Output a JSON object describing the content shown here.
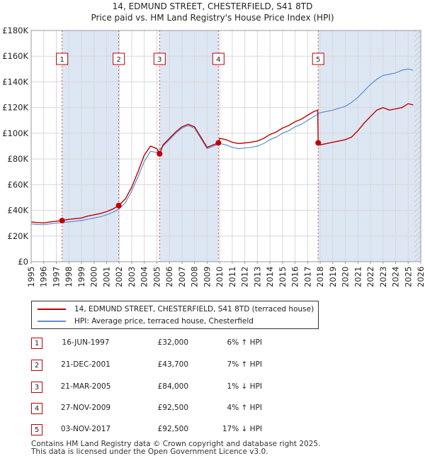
{
  "title_line1": "14, EDMUND STREET, CHESTERFIELD, S41 8TD",
  "title_line2": "Price paid vs. HM Land Registry's House Price Index (HPI)",
  "colors": {
    "property": "#c00000",
    "hpi": "#5b8fcf",
    "shade": "#dde6f3",
    "hatch": "#b0b0b0",
    "badge_border": "#c00000"
  },
  "legend": {
    "property_label": "14, EDMUND STREET, CHESTERFIELD, S41 8TD (terraced house)",
    "hpi_label": "HPI: Average price, terraced house, Chesterfield"
  },
  "sales": [
    {
      "num": "1",
      "date": "16-JUN-1997",
      "price": "£32,000",
      "hpi": "6% ↑ HPI"
    },
    {
      "num": "2",
      "date": "21-DEC-2001",
      "price": "£43,700",
      "hpi": "7% ↑ HPI"
    },
    {
      "num": "3",
      "date": "21-MAR-2005",
      "price": "£84,000",
      "hpi": "1% ↓ HPI"
    },
    {
      "num": "4",
      "date": "27-NOV-2009",
      "price": "£92,500",
      "hpi": "4% ↑ HPI"
    },
    {
      "num": "5",
      "date": "03-NOV-2017",
      "price": "£92,500",
      "hpi": "17% ↓ HPI"
    }
  ],
  "footer": {
    "line1": "Contains HM Land Registry data © Crown copyright and database right 2025.",
    "line2": "This data is licensed under the Open Government Licence v3.0."
  },
  "chart_data": {
    "type": "line",
    "title": "14, EDMUND STREET, CHESTERFIELD, S41 8TD",
    "subtitle": "Price paid vs. HM Land Registry's House Price Index (HPI)",
    "xlabel": "",
    "ylabel": "",
    "xlim": [
      1995,
      2026
    ],
    "ylim": [
      0,
      180000
    ],
    "x_ticks": [
      1995,
      1996,
      1997,
      1998,
      1999,
      2000,
      2001,
      2002,
      2003,
      2004,
      2005,
      2006,
      2007,
      2008,
      2009,
      2010,
      2011,
      2012,
      2013,
      2014,
      2015,
      2016,
      2017,
      2018,
      2019,
      2020,
      2021,
      2022,
      2023,
      2024,
      2025,
      2026
    ],
    "y_ticks": [
      0,
      20000,
      40000,
      60000,
      80000,
      100000,
      120000,
      140000,
      160000,
      180000
    ],
    "y_tick_labels": [
      "£0",
      "£20K",
      "£40K",
      "£60K",
      "£80K",
      "£100K",
      "£120K",
      "£140K",
      "£160K",
      "£180K"
    ],
    "grid": true,
    "legend_position": "below",
    "shaded_ranges": [
      [
        1997.46,
        2001.97
      ],
      [
        2005.22,
        2009.9
      ],
      [
        2017.84,
        2026
      ]
    ],
    "hatched_range": [
      2025.5,
      2026
    ],
    "sale_points": [
      {
        "label": "1",
        "x": 1997.46,
        "y": 32000
      },
      {
        "label": "2",
        "x": 2001.97,
        "y": 43700
      },
      {
        "label": "3",
        "x": 2005.22,
        "y": 84000
      },
      {
        "label": "4",
        "x": 2009.9,
        "y": 92500
      },
      {
        "label": "5",
        "x": 2017.84,
        "y": 92500
      }
    ],
    "series": [
      {
        "name": "HPI: Average price, terraced house, Chesterfield",
        "x": [
          1995,
          1995.5,
          1996,
          1996.5,
          1997,
          1997.5,
          1998,
          1998.5,
          1999,
          1999.5,
          2000,
          2000.5,
          2001,
          2001.5,
          2002,
          2002.5,
          2003,
          2003.5,
          2004,
          2004.5,
          2005,
          2005.5,
          2006,
          2006.5,
          2007,
          2007.5,
          2008,
          2008.5,
          2009,
          2009.5,
          2010,
          2010.5,
          2011,
          2011.5,
          2012,
          2012.5,
          2013,
          2013.5,
          2014,
          2014.5,
          2015,
          2015.5,
          2016,
          2016.5,
          2017,
          2017.5,
          2018,
          2018.5,
          2019,
          2019.5,
          2020,
          2020.5,
          2021,
          2021.5,
          2022,
          2022.5,
          2023,
          2023.5,
          2024,
          2024.5,
          2025,
          2025.4
        ],
        "values": [
          29500,
          29000,
          28800,
          29500,
          30000,
          30500,
          31000,
          31500,
          32000,
          33000,
          34000,
          35000,
          36500,
          38500,
          41000,
          46000,
          55000,
          66000,
          78000,
          86000,
          85000,
          90000,
          95000,
          100000,
          104000,
          106000,
          104000,
          96000,
          88000,
          90000,
          92000,
          91000,
          89000,
          88000,
          88500,
          89000,
          90000,
          92000,
          95000,
          97000,
          100000,
          102000,
          105000,
          107000,
          110000,
          113000,
          116000,
          117000,
          118000,
          119500,
          121000,
          124000,
          128000,
          133000,
          138000,
          142000,
          145000,
          146000,
          147000,
          149000,
          150000,
          149000
        ]
      },
      {
        "name": "14, EDMUND STREET, CHESTERFIELD, S41 8TD (terraced house)",
        "x": [
          1995,
          1995.5,
          1996,
          1996.5,
          1997,
          1997.46,
          1998,
          1998.5,
          1999,
          1999.5,
          2000,
          2000.5,
          2001,
          2001.5,
          2001.97,
          2002.5,
          2003,
          2003.5,
          2004,
          2004.5,
          2005,
          2005.22,
          2005.5,
          2006,
          2006.5,
          2007,
          2007.5,
          2008,
          2008.5,
          2009,
          2009.5,
          2009.9,
          2010,
          2010.5,
          2011,
          2011.5,
          2012,
          2012.5,
          2013,
          2013.5,
          2014,
          2014.5,
          2015,
          2015.5,
          2016,
          2016.5,
          2017,
          2017.5,
          2017.8,
          2017.84,
          2018,
          2018.5,
          2019,
          2019.5,
          2020,
          2020.5,
          2021,
          2021.5,
          2022,
          2022.5,
          2023,
          2023.5,
          2024,
          2024.5,
          2025,
          2025.4
        ],
        "values": [
          31000,
          30500,
          30200,
          31000,
          31500,
          32000,
          33000,
          33500,
          34000,
          35500,
          36500,
          37500,
          39000,
          41000,
          43700,
          49000,
          58000,
          70000,
          83000,
          90000,
          88000,
          84000,
          91000,
          96000,
          101000,
          105000,
          107000,
          105000,
          97000,
          89000,
          91000,
          92500,
          96000,
          95000,
          93000,
          92000,
          92500,
          93000,
          94000,
          96000,
          99000,
          101000,
          104000,
          106000,
          109000,
          111000,
          114000,
          117000,
          118000,
          92500,
          91000,
          92000,
          93000,
          94000,
          95000,
          97000,
          102000,
          108000,
          113000,
          118000,
          120000,
          118000,
          119000,
          120000,
          123000,
          122000
        ]
      }
    ]
  }
}
